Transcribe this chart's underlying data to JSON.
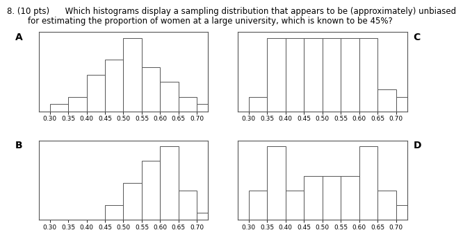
{
  "title_line1": "8. (10 pts)      Which histograms display a sampling distribution that appears to be (approximately) unbiased",
  "title_line2": "        for estimating the proportion of women at a large university, which is known to be 45%?",
  "title_fontsize": 8.5,
  "bins": [
    0.3,
    0.35,
    0.4,
    0.45,
    0.5,
    0.55,
    0.6,
    0.65,
    0.7
  ],
  "hist_A": [
    1,
    2,
    5,
    7,
    10,
    6,
    4,
    2,
    1
  ],
  "hist_B": [
    0,
    0,
    0,
    2,
    5,
    8,
    10,
    4,
    1
  ],
  "hist_C": [
    2,
    10,
    10,
    10,
    10,
    10,
    10,
    3,
    2
  ],
  "hist_D": [
    2,
    5,
    2,
    3,
    3,
    3,
    5,
    2,
    1
  ],
  "tick_fontsize": 6.5,
  "label_fontsize": 10
}
